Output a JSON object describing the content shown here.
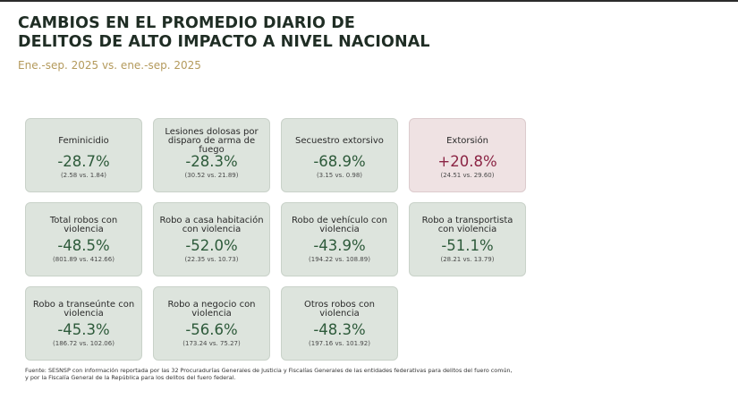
{
  "title": {
    "line1": "CAMBIOS EN EL PROMEDIO DIARIO DE",
    "line2": "DELITOS DE ALTO IMPACTO A NIVEL NACIONAL"
  },
  "subtitle": "Ene.-sep. 2025 vs. ene.-sep. 2025",
  "colors": {
    "decrease": "#2d5a3a",
    "increase": "#8b2444",
    "card_bg": "#dde4dd",
    "card_bg_increase": "#efe2e3",
    "subtitle": "#b49a5c"
  },
  "cards": [
    {
      "label": "Feminicidio",
      "change": "-28.7%",
      "detail": "(2.58 vs. 1.84)"
    },
    {
      "label": "Lesiones dolosas por disparo de arma de fuego",
      "change": "-28.3%",
      "detail": "(30.52 vs. 21.89)"
    },
    {
      "label": "Secuestro extorsivo",
      "change": "-68.9%",
      "detail": "(3.15 vs. 0.98)"
    },
    {
      "label": "Extorsión",
      "change": "+20.8%",
      "detail": "(24.51 vs. 29.60)"
    },
    {
      "label": "Total robos con violencia",
      "change": "-48.5%",
      "detail": "(801.89 vs. 412.66)"
    },
    {
      "label": "Robo a casa habitación con violencia",
      "change": "-52.0%",
      "detail": "(22.35 vs. 10.73)"
    },
    {
      "label": "Robo de vehículo con violencia",
      "change": "-43.9%",
      "detail": "(194.22 vs. 108.89)"
    },
    {
      "label": "Robo a transportista con violencia",
      "change": "-51.1%",
      "detail": "(28.21 vs. 13.79)"
    },
    {
      "label": "Robo a transeúnte con violencia",
      "change": "-45.3%",
      "detail": "(186.72 vs. 102.06)"
    },
    {
      "label": "Robo a negocio con violencia",
      "change": "-56.6%",
      "detail": "(173.24 vs. 75.27)"
    },
    {
      "label": "Otros robos con violencia",
      "change": "-48.3%",
      "detail": "(197.16 vs. 101.92)"
    }
  ],
  "source": {
    "line1": "Fuente: SESNSP con información reportada por las 32 Procuradurías Generales de Justicia y Fiscalías Generales de las entidades federativas para delitos del fuero común,",
    "line2": "y por la Fiscalía General de la República para los delitos del fuero federal."
  }
}
